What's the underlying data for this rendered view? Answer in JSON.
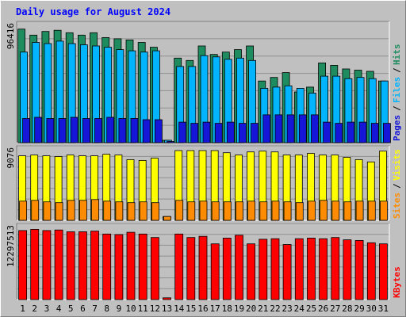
{
  "chart_data": {
    "type": "bar",
    "title": "Daily usage for August 2024",
    "colors": {
      "hits": "#1e8c5f",
      "files": "#00b4ff",
      "pages": "#1616d9",
      "sites": "#ff8c00",
      "visits": "#ffff00",
      "kbytes": "#ff0000",
      "weekend": "#1e8c5f",
      "weekday": "#000000",
      "background": "#c0c0c0",
      "title": "#0000ff"
    },
    "days": [
      "1",
      "2",
      "3",
      "4",
      "5",
      "6",
      "7",
      "8",
      "9",
      "10",
      "11",
      "12",
      "13",
      "14",
      "15",
      "16",
      "17",
      "18",
      "19",
      "20",
      "21",
      "22",
      "23",
      "24",
      "25",
      "26",
      "27",
      "28",
      "29",
      "30",
      "31"
    ],
    "weekend_days": [
      "3",
      "4",
      "10",
      "11",
      "17",
      "18",
      "24",
      "25",
      "31"
    ],
    "panels": [
      {
        "id": "hits_files_pages",
        "max_label": "96416",
        "ylim": [
          0,
          96416
        ],
        "legend": [
          "Pages",
          "Files",
          "Hits"
        ],
        "legend_separator": "/",
        "series": [
          {
            "name": "Hits",
            "values": [
              94000,
              89000,
              92000,
              93000,
              91000,
              89000,
              91000,
              87000,
              86000,
              85000,
              83000,
              79000,
              2000,
              70000,
              68000,
              80000,
              73000,
              75000,
              77000,
              80000,
              51000,
              54000,
              58000,
              42000,
              46000,
              66000,
              64000,
              61000,
              60000,
              59000,
              51000
            ]
          },
          {
            "name": "Files",
            "values": [
              75000,
              83000,
              82000,
              84000,
              82000,
              81000,
              80000,
              79000,
              77000,
              76000,
              75000,
              76000,
              2000,
              63000,
              63000,
              72000,
              71000,
              69000,
              70000,
              68000,
              45000,
              46000,
              47000,
              45000,
              41000,
              55000,
              55000,
              53000,
              54000,
              53000,
              51000
            ]
          },
          {
            "name": "Pages",
            "values": [
              20000,
              21000,
              20000,
              20000,
              21000,
              20000,
              20000,
              21000,
              20000,
              20000,
              19000,
              19000,
              1000,
              17000,
              16000,
              17000,
              16000,
              17000,
              16000,
              16000,
              23000,
              23000,
              23000,
              23000,
              23000,
              17000,
              16000,
              17000,
              17000,
              16000,
              16000
            ]
          }
        ]
      },
      {
        "id": "sites_visits",
        "max_label": "9076",
        "ylim": [
          0,
          9076
        ],
        "legend": [
          "Sites",
          "Visits"
        ],
        "legend_separator": "/",
        "series": [
          {
            "name": "Visits",
            "values": [
              8400,
              8500,
              8400,
              8300,
              8500,
              8400,
              8400,
              8600,
              8500,
              7900,
              7800,
              8100,
              500,
              9076,
              9076,
              9076,
              9076,
              8800,
              8500,
              8900,
              9000,
              8900,
              8500,
              8500,
              8700,
              8500,
              8500,
              8200,
              7900,
              7600,
              9000
            ]
          },
          {
            "name": "Sites",
            "values": [
              2500,
              2600,
              2400,
              2300,
              2600,
              2600,
              2700,
              2500,
              2400,
              2300,
              2400,
              2300,
              500,
              2600,
              2400,
              2500,
              2400,
              2400,
              2400,
              2500,
              2400,
              2500,
              2400,
              2300,
              2500,
              2600,
              2500,
              2400,
              2500,
              2500,
              2500
            ]
          }
        ]
      },
      {
        "id": "kbytes",
        "max_label": "12297513",
        "ylim": [
          0,
          12297513
        ],
        "legend": [
          "KBytes"
        ],
        "legend_separator": "",
        "series": [
          {
            "name": "KBytes",
            "values": [
              11900000,
              12100000,
              11900000,
              12000000,
              11700000,
              11700000,
              11800000,
              11300000,
              11200000,
              11600000,
              11300000,
              10700000,
              300000,
              11300000,
              10700000,
              10900000,
              9600000,
              10600000,
              11100000,
              9600000,
              10400000,
              10500000,
              9500000,
              10500000,
              10600000,
              10500000,
              10700000,
              10300000,
              10200000,
              9800000,
              9600000
            ]
          }
        ]
      }
    ]
  }
}
